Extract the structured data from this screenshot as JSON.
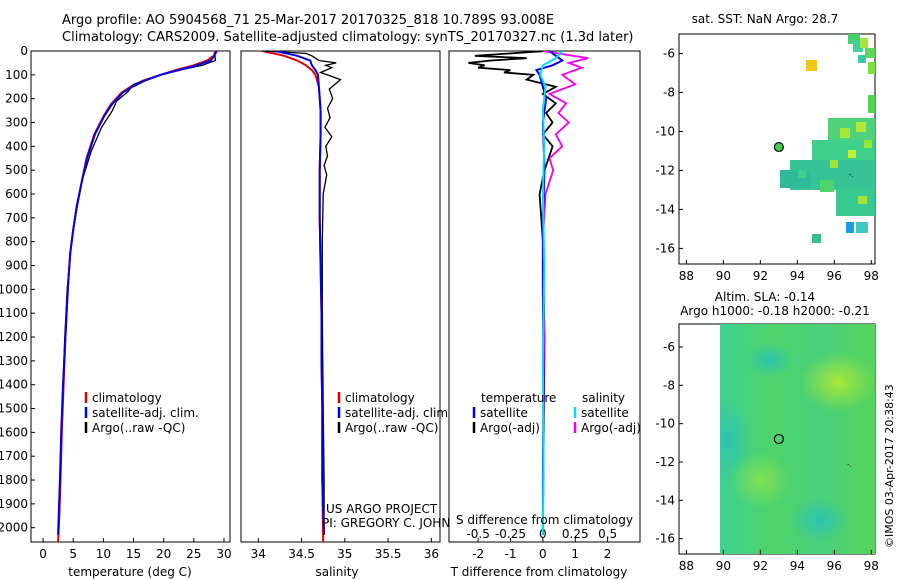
{
  "header": {
    "line1": "Argo profile: AO 5904568_71 25-Mar-2017 20170325_818 10.789S 93.008E",
    "line2": "Climatology: CARS2009. Satellite-adjusted climatology: synTS_20170327.nc (1.3d later)"
  },
  "colors": {
    "climatology": "#e00000",
    "satellite": "#0000ee",
    "argo": "#000000",
    "satellite_salinity": "#00e0ee",
    "argo_salinity": "#ee00ee"
  },
  "credit": {
    "project": "US ARGO PROJECT",
    "pi": "PI: GREGORY C. JOHNSON",
    "stamp": "©IMOS 03-Apr-2017 20:38:43"
  },
  "chart_data": [
    {
      "id": "temperature",
      "type": "line",
      "xlabel": "temperature (deg C)",
      "ylabel": "",
      "xlim": [
        -2,
        31
      ],
      "ylim": [
        0,
        2060
      ],
      "y_inverted": true,
      "xticks": [
        0,
        5,
        10,
        15,
        20,
        25,
        30
      ],
      "xtick_labels": [
        "0",
        "5",
        "10",
        "15",
        "20",
        "25",
        "30"
      ],
      "yticks": [
        0,
        100,
        200,
        300,
        400,
        500,
        600,
        700,
        800,
        900,
        1000,
        1100,
        1200,
        1300,
        1400,
        1500,
        1600,
        1700,
        1800,
        1900,
        2000
      ],
      "ytick_labels": [
        "0",
        "100",
        "200",
        "300",
        "400",
        "500",
        "600",
        "700",
        "800",
        "900",
        "1000",
        "1100",
        "1200",
        "1300",
        "1400",
        "1500",
        "1600",
        "1700",
        "1800",
        "1900",
        "2000"
      ],
      "legend": [
        "climatology",
        "satellite-adj. clim.",
        "Argo(..raw -QC)"
      ],
      "series": [
        {
          "name": "climatology",
          "color": "#e00000",
          "x": [
            28.6,
            28.3,
            27.2,
            25.0,
            22.0,
            19.5,
            16.5,
            14.5,
            13.0,
            11.2,
            10.0,
            8.5,
            7.2,
            6.4,
            5.6,
            5.0,
            4.5,
            4.1,
            3.7,
            3.4,
            3.1,
            2.9,
            2.7,
            2.5
          ],
          "y": [
            0,
            20,
            40,
            60,
            80,
            100,
            125,
            150,
            175,
            225,
            275,
            350,
            450,
            550,
            650,
            750,
            850,
            1000,
            1200,
            1400,
            1600,
            1800,
            1950,
            2060
          ]
        },
        {
          "name": "satellite",
          "color": "#0000ee",
          "x": [
            28.8,
            28.4,
            27.8,
            25.5,
            22.5,
            19.5,
            16.8,
            14.8,
            13.2,
            11.4,
            10.1,
            8.6,
            7.3,
            6.4,
            5.6,
            5.0,
            4.5,
            4.1,
            3.7,
            3.3,
            3.0,
            2.8,
            2.6,
            2.5
          ],
          "y": [
            0,
            20,
            40,
            60,
            80,
            100,
            125,
            150,
            175,
            225,
            275,
            350,
            450,
            550,
            650,
            750,
            850,
            1000,
            1200,
            1400,
            1600,
            1800,
            1950,
            2030
          ]
        },
        {
          "name": "Argo",
          "color": "#000000",
          "x": [
            28.7,
            28.5,
            28.6,
            26.4,
            24.5,
            20.8,
            18.5,
            15.0,
            14.1,
            12.2,
            11.5,
            9.7,
            8.0,
            6.5,
            5.7,
            5.0,
            4.5,
            4.0,
            3.6,
            3.3,
            3.0,
            2.8,
            2.6,
            2.5
          ],
          "y": [
            0,
            20,
            40,
            60,
            70,
            90,
            110,
            140,
            170,
            210,
            250,
            320,
            420,
            540,
            650,
            750,
            850,
            1000,
            1200,
            1400,
            1600,
            1800,
            1950,
            2030
          ]
        }
      ]
    },
    {
      "id": "salinity",
      "type": "line",
      "xlabel": "salinity",
      "xlim": [
        33.8,
        36.1
      ],
      "ylim": [
        0,
        2060
      ],
      "y_inverted": true,
      "xticks": [
        34,
        34.5,
        35,
        35.5,
        36
      ],
      "xtick_labels": [
        "34",
        "34.5",
        "35",
        "35.5",
        "36"
      ],
      "legend": [
        "climatology",
        "satellite-adj. clim.",
        "Argo(..raw -QC)"
      ],
      "series": [
        {
          "name": "climatology",
          "color": "#e00000",
          "x": [
            34.05,
            34.3,
            34.45,
            34.55,
            34.62,
            34.66,
            34.7,
            34.72,
            34.72,
            34.71,
            34.71,
            34.72,
            34.73,
            34.73,
            34.74,
            34.74,
            34.75
          ],
          "y": [
            0,
            20,
            40,
            60,
            80,
            100,
            150,
            250,
            350,
            500,
            700,
            900,
            1100,
            1300,
            1500,
            1800,
            2060
          ]
        },
        {
          "name": "satellite",
          "color": "#0000ee",
          "x": [
            34.2,
            34.45,
            34.6,
            34.62,
            34.66,
            34.69,
            34.7,
            34.72,
            34.72,
            34.71,
            34.71,
            34.72,
            34.73,
            34.73,
            34.74,
            34.74,
            34.76
          ],
          "y": [
            0,
            20,
            40,
            60,
            80,
            100,
            150,
            250,
            350,
            500,
            700,
            900,
            1100,
            1300,
            1500,
            1800,
            2030
          ]
        },
        {
          "name": "Argo",
          "color": "#000000",
          "x": [
            34.05,
            34.55,
            34.62,
            34.7,
            34.9,
            34.78,
            34.85,
            34.72,
            34.95,
            34.82,
            34.86,
            34.8,
            34.83,
            34.77,
            34.85,
            34.78,
            34.8,
            34.76,
            34.79,
            34.75,
            34.74,
            34.74,
            34.75,
            34.76,
            34.76
          ],
          "y": [
            0,
            10,
            20,
            40,
            50,
            60,
            70,
            90,
            120,
            160,
            200,
            240,
            280,
            320,
            360,
            400,
            440,
            480,
            520,
            600,
            800,
            1100,
            1500,
            1800,
            2030
          ]
        }
      ]
    },
    {
      "id": "difference",
      "type": "line",
      "xlabel": "T difference from climatology",
      "xlabel2": "S difference from climatology",
      "xlim": [
        -2.9,
        3.0
      ],
      "x2lim": [
        -0.725,
        0.75
      ],
      "ylim": [
        0,
        2060
      ],
      "y_inverted": true,
      "xticks": [
        -2,
        -1,
        0,
        1,
        2
      ],
      "xtick_labels": [
        "-2",
        "-1",
        "0",
        "1",
        "2"
      ],
      "x2ticks": [
        -0.5,
        -0.25,
        0,
        0.25,
        0.5
      ],
      "x2tick_labels": [
        "-0.5",
        "-0.25",
        "0",
        "0.25",
        "0.5"
      ],
      "legend_temperature_title": "temperature",
      "legend_salinity_title": "salinity",
      "legend": [
        "satellite",
        "Argo(-adj)",
        "satellite",
        "Argo(-adj)"
      ],
      "series": [
        {
          "name": "T satellite",
          "color": "#0000ee",
          "x": [
            0.2,
            0.4,
            0.6,
            0.3,
            -0.2,
            -0.1,
            0.0,
            0.1,
            0.0,
            0.05,
            0.0,
            0.0,
            0.02,
            0.0,
            0.0
          ],
          "y": [
            0,
            20,
            40,
            60,
            80,
            100,
            150,
            200,
            300,
            500,
            700,
            1000,
            1400,
            1800,
            2030
          ]
        },
        {
          "name": "T Argo",
          "color": "#000000",
          "x": [
            0.1,
            -2.1,
            -0.5,
            -1.6,
            -2.3,
            -1.8,
            -2.0,
            -1.0,
            -1.2,
            -0.3,
            -0.5,
            0.4,
            0.0,
            0.4,
            0.1,
            0.3,
            0.0,
            0.3,
            0.05,
            -0.1,
            0.0,
            0.05,
            0.0
          ],
          "y": [
            0,
            20,
            30,
            40,
            50,
            60,
            70,
            80,
            90,
            100,
            120,
            150,
            180,
            220,
            260,
            300,
            350,
            400,
            500,
            600,
            800,
            1200,
            2030
          ]
        },
        {
          "name": "S satellite",
          "color": "#00e0ee",
          "x": [
            0.15,
            0.1,
            0.0,
            -0.02,
            0.02,
            0.0,
            0.01,
            0.0,
            0.01,
            0.0,
            0.005,
            0.0
          ],
          "y": [
            0,
            30,
            60,
            100,
            150,
            250,
            400,
            600,
            900,
            1300,
            1700,
            2030
          ]
        },
        {
          "name": "S Argo",
          "color": "#ee00ee",
          "x": [
            0.0,
            0.35,
            0.2,
            0.3,
            0.15,
            0.25,
            0.05,
            0.18,
            0.12,
            0.2,
            0.1,
            0.15,
            0.05,
            0.08,
            0.02,
            0.0,
            0.01,
            0.0
          ],
          "y": [
            0,
            30,
            50,
            70,
            100,
            140,
            180,
            220,
            260,
            300,
            350,
            400,
            450,
            500,
            600,
            800,
            1200,
            2030
          ]
        }
      ]
    },
    {
      "id": "sst_map",
      "type": "heatmap",
      "title": "sat. SST: NaN Argo: 28.7",
      "xlim": [
        87.6,
        98.2
      ],
      "ylim": [
        -16.8,
        -5.0
      ],
      "xticks": [
        88,
        90,
        92,
        94,
        96,
        98
      ],
      "xtick_labels": [
        "88",
        "90",
        "92",
        "94",
        "96",
        "98"
      ],
      "yticks": [
        -6,
        -8,
        -10,
        -12,
        -14,
        -16
      ],
      "ytick_labels": [
        "-6",
        "-8",
        "-10",
        "-12",
        "-14",
        "-16"
      ],
      "argo_position": [
        93.0,
        -10.8
      ]
    },
    {
      "id": "sla_map",
      "type": "heatmap",
      "title": "Altim. SLA: -0.14",
      "subtitle": "Argo h1000: -0.18 h2000: -0.21",
      "xlim": [
        87.6,
        98.2
      ],
      "ylim": [
        -16.8,
        -4.8
      ],
      "xticks": [
        88,
        90,
        92,
        94,
        96,
        98
      ],
      "xtick_labels": [
        "88",
        "90",
        "92",
        "94",
        "96",
        "98"
      ],
      "yticks": [
        -6,
        -8,
        -10,
        -12,
        -14,
        -16
      ],
      "ytick_labels": [
        "-6",
        "-8",
        "-10",
        "-12",
        "-14",
        "-16"
      ],
      "argo_position": [
        93.0,
        -10.8
      ]
    }
  ]
}
